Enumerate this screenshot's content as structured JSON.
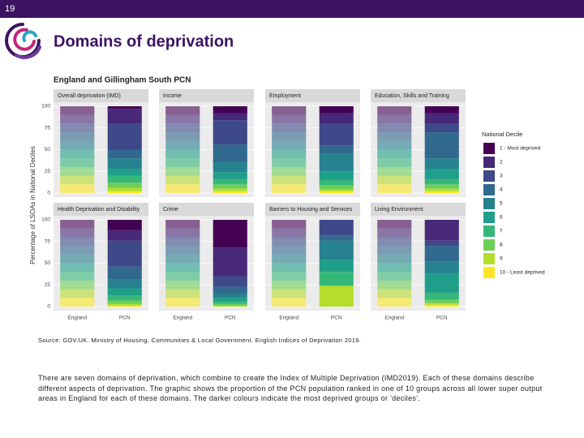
{
  "slide_number": "19",
  "title": "Domains of deprivation",
  "figure": {
    "title": "England and Gillingham South PCN",
    "ylabel": "Percentage of LSOAs in National Deciles",
    "legend_title": "National Decile"
  },
  "source": "Source: GOV.UK. Ministry of Housing, Communities & Local Government. English Indices of Deprivation 2019.",
  "body": "There are seven domains of deprivation, which combine to create the Index of Multiple Deprivation (IMD2019). Each of these domains describe different aspects of deprivation. The graphic shows the proportion of the PCN population ranked in one of 10 groups across all lower super output areas in England for each of these domains. The darker colours indicate the most deprived groups or 'deciles'.",
  "chart_data": [
    {
      "type": "stacked_bar",
      "title": "Overall deprivation (IMD)",
      "categories": [
        "England",
        "PCN"
      ],
      "ylim": [
        0,
        100
      ],
      "yticks": [
        0,
        25,
        50,
        75,
        100
      ],
      "grid": true,
      "series": [
        {
          "name": "1 - Most deprived",
          "color": "#440154",
          "values": [
            10,
            3
          ]
        },
        {
          "name": "2",
          "color": "#482878",
          "values": [
            10,
            17
          ]
        },
        {
          "name": "3",
          "color": "#3e4989",
          "values": [
            10,
            30
          ]
        },
        {
          "name": "4",
          "color": "#31688e",
          "values": [
            10,
            10
          ]
        },
        {
          "name": "5",
          "color": "#26828e",
          "values": [
            10,
            12
          ]
        },
        {
          "name": "6",
          "color": "#1f9e89",
          "values": [
            10,
            8
          ]
        },
        {
          "name": "7",
          "color": "#35b779",
          "values": [
            10,
            8
          ]
        },
        {
          "name": "8",
          "color": "#6ece58",
          "values": [
            10,
            6
          ]
        },
        {
          "name": "9",
          "color": "#b5de2b",
          "values": [
            10,
            4
          ]
        },
        {
          "name": "10 - Least deprived",
          "color": "#fde725",
          "values": [
            10,
            2
          ]
        }
      ]
    },
    {
      "type": "stacked_bar",
      "title": "Income",
      "categories": [
        "England",
        "PCN"
      ],
      "ylim": [
        0,
        100
      ],
      "yticks": [
        0,
        25,
        50,
        75,
        100
      ],
      "grid": true,
      "series": [
        {
          "name": "1 - Most deprived",
          "color": "#440154",
          "values": [
            10,
            8
          ]
        },
        {
          "name": "2",
          "color": "#482878",
          "values": [
            10,
            8
          ]
        },
        {
          "name": "3",
          "color": "#3e4989",
          "values": [
            10,
            28
          ]
        },
        {
          "name": "4",
          "color": "#31688e",
          "values": [
            10,
            20
          ]
        },
        {
          "name": "5",
          "color": "#26828e",
          "values": [
            10,
            12
          ]
        },
        {
          "name": "6",
          "color": "#1f9e89",
          "values": [
            10,
            8
          ]
        },
        {
          "name": "7",
          "color": "#35b779",
          "values": [
            10,
            6
          ]
        },
        {
          "name": "8",
          "color": "#6ece58",
          "values": [
            10,
            5
          ]
        },
        {
          "name": "9",
          "color": "#b5de2b",
          "values": [
            10,
            3
          ]
        },
        {
          "name": "10 - Least deprived",
          "color": "#fde725",
          "values": [
            10,
            2
          ]
        }
      ]
    },
    {
      "type": "stacked_bar",
      "title": "Employment",
      "categories": [
        "England",
        "PCN"
      ],
      "ylim": [
        0,
        100
      ],
      "yticks": [
        0,
        25,
        50,
        75,
        100
      ],
      "grid": true,
      "series": [
        {
          "name": "1 - Most deprived",
          "color": "#440154",
          "values": [
            10,
            8
          ]
        },
        {
          "name": "2",
          "color": "#482878",
          "values": [
            10,
            12
          ]
        },
        {
          "name": "3",
          "color": "#3e4989",
          "values": [
            10,
            25
          ]
        },
        {
          "name": "4",
          "color": "#31688e",
          "values": [
            10,
            10
          ]
        },
        {
          "name": "5",
          "color": "#26828e",
          "values": [
            10,
            20
          ]
        },
        {
          "name": "6",
          "color": "#1f9e89",
          "values": [
            10,
            10
          ]
        },
        {
          "name": "7",
          "color": "#35b779",
          "values": [
            10,
            6
          ]
        },
        {
          "name": "8",
          "color": "#6ece58",
          "values": [
            10,
            5
          ]
        },
        {
          "name": "9",
          "color": "#b5de2b",
          "values": [
            10,
            2
          ]
        },
        {
          "name": "10 - Least deprived",
          "color": "#fde725",
          "values": [
            10,
            2
          ]
        }
      ]
    },
    {
      "type": "stacked_bar",
      "title": "Education, Skills and Training",
      "categories": [
        "England",
        "PCN"
      ],
      "ylim": [
        0,
        100
      ],
      "yticks": [
        0,
        25,
        50,
        75,
        100
      ],
      "grid": true,
      "series": [
        {
          "name": "1 - Most deprived",
          "color": "#440154",
          "values": [
            10,
            8
          ]
        },
        {
          "name": "2",
          "color": "#482878",
          "values": [
            10,
            12
          ]
        },
        {
          "name": "3",
          "color": "#3e4989",
          "values": [
            10,
            10
          ]
        },
        {
          "name": "4",
          "color": "#31688e",
          "values": [
            10,
            30
          ]
        },
        {
          "name": "5",
          "color": "#26828e",
          "values": [
            10,
            12
          ]
        },
        {
          "name": "6",
          "color": "#1f9e89",
          "values": [
            10,
            12
          ]
        },
        {
          "name": "7",
          "color": "#35b779",
          "values": [
            10,
            6
          ]
        },
        {
          "name": "8",
          "color": "#6ece58",
          "values": [
            10,
            5
          ]
        },
        {
          "name": "9",
          "color": "#b5de2b",
          "values": [
            10,
            3
          ]
        },
        {
          "name": "10 - Least deprived",
          "color": "#fde725",
          "values": [
            10,
            2
          ]
        }
      ]
    },
    {
      "type": "stacked_bar",
      "title": "Health Deprivation and Disability",
      "categories": [
        "England",
        "PCN"
      ],
      "ylim": [
        0,
        100
      ],
      "yticks": [
        0,
        25,
        50,
        75,
        100
      ],
      "grid": true,
      "series": [
        {
          "name": "1 - Most deprived",
          "color": "#440154",
          "values": [
            10,
            12
          ]
        },
        {
          "name": "2",
          "color": "#482878",
          "values": [
            10,
            12
          ]
        },
        {
          "name": "3",
          "color": "#3e4989",
          "values": [
            10,
            30
          ]
        },
        {
          "name": "4",
          "color": "#31688e",
          "values": [
            10,
            15
          ]
        },
        {
          "name": "5",
          "color": "#26828e",
          "values": [
            10,
            10
          ]
        },
        {
          "name": "6",
          "color": "#1f9e89",
          "values": [
            10,
            8
          ]
        },
        {
          "name": "7",
          "color": "#35b779",
          "values": [
            10,
            6
          ]
        },
        {
          "name": "8",
          "color": "#6ece58",
          "values": [
            10,
            4
          ]
        },
        {
          "name": "9",
          "color": "#b5de2b",
          "values": [
            10,
            2
          ]
        },
        {
          "name": "10 - Least deprived",
          "color": "#fde725",
          "values": [
            10,
            1
          ]
        }
      ]
    },
    {
      "type": "stacked_bar",
      "title": "Crime",
      "categories": [
        "England",
        "PCN"
      ],
      "ylim": [
        0,
        100
      ],
      "yticks": [
        0,
        25,
        50,
        75,
        100
      ],
      "grid": true,
      "series": [
        {
          "name": "1 - Most deprived",
          "color": "#440154",
          "values": [
            10,
            32
          ]
        },
        {
          "name": "2",
          "color": "#482878",
          "values": [
            10,
            33
          ]
        },
        {
          "name": "3",
          "color": "#3e4989",
          "values": [
            10,
            12
          ]
        },
        {
          "name": "4",
          "color": "#31688e",
          "values": [
            10,
            8
          ]
        },
        {
          "name": "5",
          "color": "#26828e",
          "values": [
            10,
            5
          ]
        },
        {
          "name": "6",
          "color": "#1f9e89",
          "values": [
            10,
            4
          ]
        },
        {
          "name": "7",
          "color": "#35b779",
          "values": [
            10,
            3
          ]
        },
        {
          "name": "8",
          "color": "#6ece58",
          "values": [
            10,
            2
          ]
        },
        {
          "name": "9",
          "color": "#b5de2b",
          "values": [
            10,
            1
          ]
        },
        {
          "name": "10 - Least deprived",
          "color": "#fde725",
          "values": [
            10,
            0
          ]
        }
      ]
    },
    {
      "type": "stacked_bar",
      "title": "Barriers to Housing and Services",
      "categories": [
        "England",
        "PCN"
      ],
      "ylim": [
        0,
        100
      ],
      "yticks": [
        0,
        25,
        50,
        75,
        100
      ],
      "grid": true,
      "series": [
        {
          "name": "1 - Most deprived",
          "color": "#440154",
          "values": [
            10,
            0
          ]
        },
        {
          "name": "2",
          "color": "#482878",
          "values": [
            10,
            0
          ]
        },
        {
          "name": "3",
          "color": "#3e4989",
          "values": [
            10,
            18
          ]
        },
        {
          "name": "4",
          "color": "#31688e",
          "values": [
            10,
            6
          ]
        },
        {
          "name": "5",
          "color": "#26828e",
          "values": [
            10,
            22
          ]
        },
        {
          "name": "6",
          "color": "#1f9e89",
          "values": [
            10,
            14
          ]
        },
        {
          "name": "7",
          "color": "#35b779",
          "values": [
            10,
            16
          ]
        },
        {
          "name": "8",
          "color": "#6ece58",
          "values": [
            10,
            0
          ]
        },
        {
          "name": "9",
          "color": "#b5de2b",
          "values": [
            10,
            24
          ]
        },
        {
          "name": "10 - Least deprived",
          "color": "#fde725",
          "values": [
            10,
            0
          ]
        }
      ]
    },
    {
      "type": "stacked_bar",
      "title": "Living Environment",
      "categories": [
        "England",
        "PCN"
      ],
      "ylim": [
        0,
        100
      ],
      "yticks": [
        0,
        25,
        50,
        75,
        100
      ],
      "grid": true,
      "series": [
        {
          "name": "1 - Most deprived",
          "color": "#440154",
          "values": [
            10,
            0
          ]
        },
        {
          "name": "2",
          "color": "#482878",
          "values": [
            10,
            24
          ]
        },
        {
          "name": "3",
          "color": "#3e4989",
          "values": [
            10,
            6
          ]
        },
        {
          "name": "4",
          "color": "#31688e",
          "values": [
            10,
            18
          ]
        },
        {
          "name": "5",
          "color": "#26828e",
          "values": [
            10,
            14
          ]
        },
        {
          "name": "6",
          "color": "#1f9e89",
          "values": [
            10,
            22
          ]
        },
        {
          "name": "7",
          "color": "#35b779",
          "values": [
            10,
            8
          ]
        },
        {
          "name": "8",
          "color": "#6ece58",
          "values": [
            10,
            4
          ]
        },
        {
          "name": "9",
          "color": "#b5de2b",
          "values": [
            10,
            2
          ]
        },
        {
          "name": "10 - Least deprived",
          "color": "#fde725",
          "values": [
            10,
            2
          ]
        }
      ]
    }
  ]
}
